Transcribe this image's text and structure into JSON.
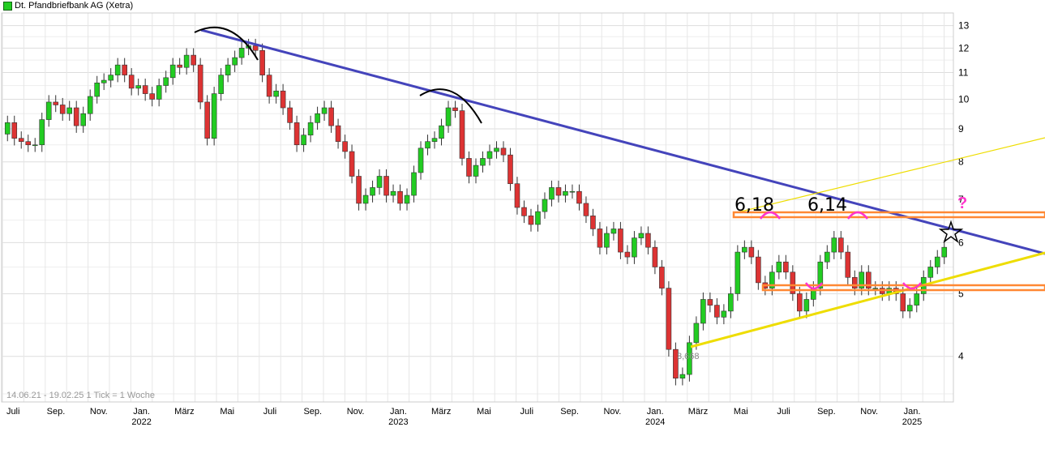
{
  "chart_data": {
    "type": "candlestick",
    "title": "Dt. Pfandbriefbank AG (Xetra)",
    "date_range": "14.06.21 - 19.02.25",
    "tick_note": "1 Tick = 1 Woche",
    "y_scale": "log",
    "ylim": [
      3.4,
      13.6
    ],
    "y_ticks": [
      4,
      5,
      6,
      7,
      8,
      9,
      10,
      11,
      12,
      13
    ],
    "x_labels": [
      {
        "label": "Juli",
        "year": "",
        "t": 0.5
      },
      {
        "label": "Sep.",
        "year": "",
        "t": 2.5
      },
      {
        "label": "Nov.",
        "year": "",
        "t": 4.5
      },
      {
        "label": "Jan.",
        "year": "2022",
        "t": 6.5
      },
      {
        "label": "März",
        "year": "",
        "t": 8.5
      },
      {
        "label": "Mai",
        "year": "",
        "t": 10.5
      },
      {
        "label": "Juli",
        "year": "",
        "t": 12.5
      },
      {
        "label": "Sep.",
        "year": "",
        "t": 14.5
      },
      {
        "label": "Nov.",
        "year": "",
        "t": 16.5
      },
      {
        "label": "Jan.",
        "year": "2023",
        "t": 18.5
      },
      {
        "label": "März",
        "year": "",
        "t": 20.5
      },
      {
        "label": "Mai",
        "year": "",
        "t": 22.5
      },
      {
        "label": "Juli",
        "year": "",
        "t": 24.5
      },
      {
        "label": "Sep.",
        "year": "",
        "t": 26.5
      },
      {
        "label": "Nov.",
        "year": "",
        "t": 28.5
      },
      {
        "label": "Jan.",
        "year": "2024",
        "t": 30.5
      },
      {
        "label": "März",
        "year": "",
        "t": 32.5
      },
      {
        "label": "Mai",
        "year": "",
        "t": 34.5
      },
      {
        "label": "Juli",
        "year": "",
        "t": 36.5
      },
      {
        "label": "Sep.",
        "year": "",
        "t": 38.5
      },
      {
        "label": "Nov.",
        "year": "",
        "t": 40.5
      },
      {
        "label": "Jan.",
        "year": "2025",
        "t": 42.5
      }
    ],
    "closes": [
      9.2,
      8.7,
      8.6,
      8.5,
      8.5,
      9.3,
      9.9,
      9.8,
      9.5,
      9.7,
      9.1,
      9.5,
      10.1,
      10.6,
      10.7,
      10.9,
      11.3,
      10.9,
      10.4,
      10.5,
      10.2,
      10.0,
      10.5,
      10.8,
      11.3,
      11.2,
      11.7,
      11.3,
      9.9,
      8.7,
      10.2,
      10.9,
      11.3,
      11.6,
      12.0,
      12.1,
      11.9,
      10.9,
      10.1,
      10.3,
      9.7,
      9.2,
      8.5,
      8.8,
      9.2,
      9.5,
      9.7,
      9.1,
      8.6,
      8.3,
      7.6,
      6.9,
      7.1,
      7.3,
      7.6,
      7.1,
      7.2,
      6.9,
      7.1,
      7.7,
      8.4,
      8.6,
      8.7,
      9.1,
      9.7,
      9.6,
      8.1,
      7.6,
      7.9,
      8.1,
      8.3,
      8.4,
      8.2,
      7.4,
      6.8,
      6.6,
      6.4,
      6.7,
      7.0,
      7.3,
      7.1,
      7.2,
      7.2,
      6.9,
      6.6,
      6.3,
      5.9,
      6.2,
      6.3,
      5.8,
      5.7,
      6.1,
      6.2,
      5.9,
      5.5,
      5.1,
      4.1,
      3.7,
      3.75,
      4.2,
      4.5,
      4.9,
      4.8,
      4.6,
      4.7,
      5.0,
      5.8,
      5.9,
      5.7,
      5.2,
      5.1,
      5.4,
      5.6,
      5.4,
      5.0,
      4.7,
      4.9,
      5.1,
      5.6,
      5.8,
      6.1,
      5.8,
      5.3,
      5.1,
      5.4,
      5.1,
      5.1,
      5.0,
      5.1,
      5.0,
      4.7,
      4.8,
      5.0,
      5.3,
      5.5,
      5.7,
      5.9
    ]
  },
  "annotations": {
    "label_618": "6,18",
    "label_614": "6,14",
    "label_low": "3,668",
    "question": "?"
  },
  "colors": {
    "up": "#22cc22",
    "down": "#dd3333",
    "trend_down": "#4444bb",
    "trend_up": "#eedd00",
    "channel": "#ff8833",
    "highlight": "#ff33cc",
    "grid": "#dddddd"
  }
}
